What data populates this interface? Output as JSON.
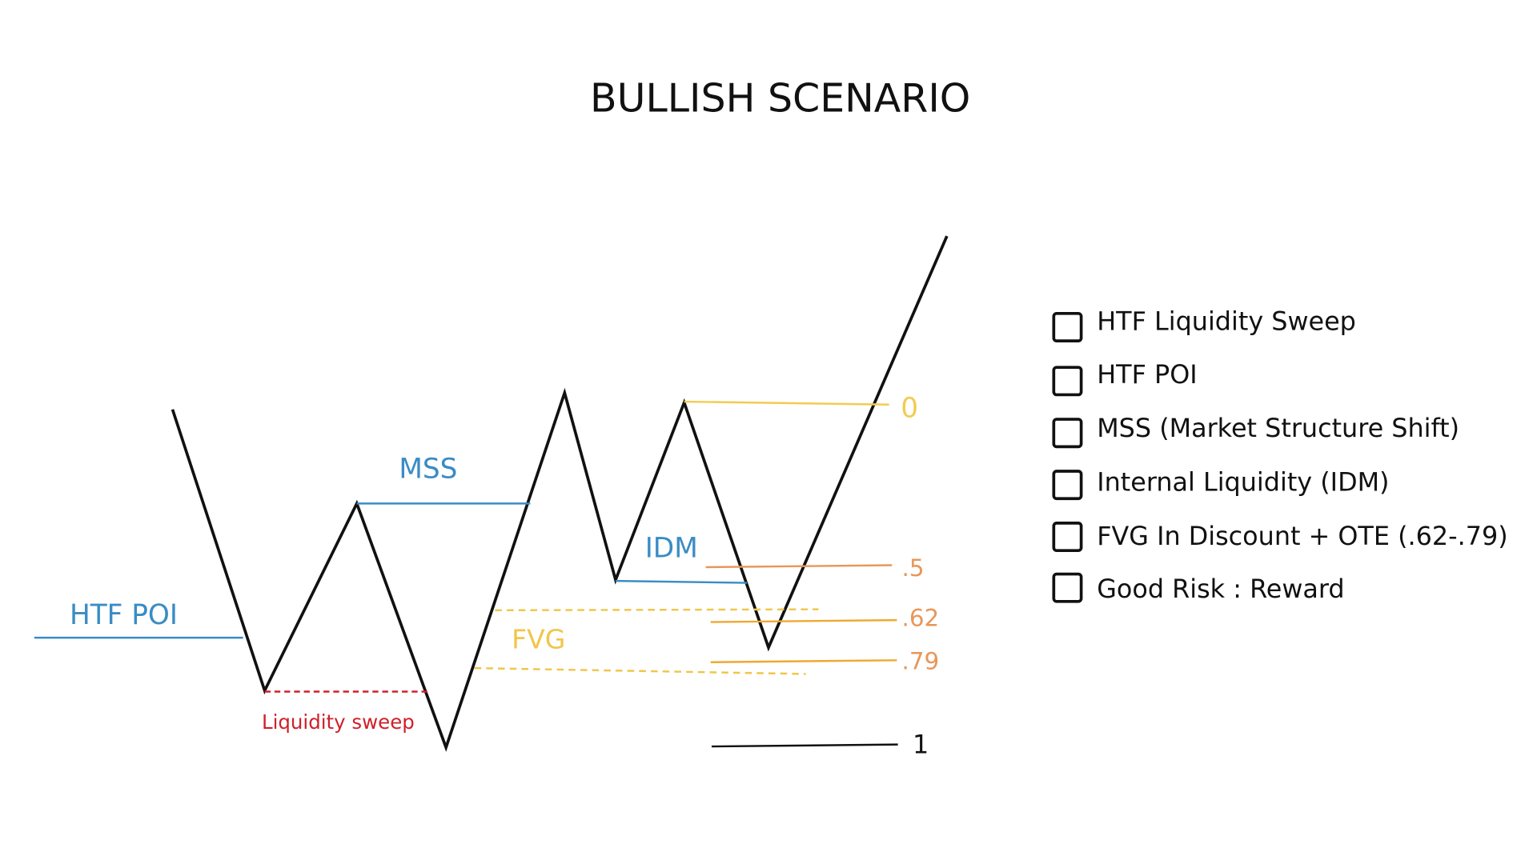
{
  "title": "BULLISH SCENARIO",
  "colors": {
    "price": "#111111",
    "blue": "#3a8cc4",
    "red": "#d0202a",
    "fvg": "#f0c64a",
    "fib_0": "#f2cc50",
    "fib_half": "#e8975a",
    "fib_ote": "#f0a830",
    "fib_1": "#111111"
  },
  "labels": {
    "htf_poi": "HTF POI",
    "mss": "MSS",
    "idm": "IDM",
    "fvg": "FVG",
    "liquidity_sweep": "Liquidity sweep"
  },
  "fib_levels": [
    {
      "label": "0"
    },
    {
      "label": ".5"
    },
    {
      "label": ".62"
    },
    {
      "label": ".79"
    },
    {
      "label": "1"
    }
  ],
  "checklist": [
    {
      "label": "HTF Liquidity Sweep",
      "checked": false
    },
    {
      "label": "HTF POI",
      "checked": false
    },
    {
      "label": "MSS (Market Structure Shift)",
      "checked": false
    },
    {
      "label": "Internal Liquidity (IDM)",
      "checked": false
    },
    {
      "label": "FVG In Discount + OTE (.62-.79)",
      "checked": false
    },
    {
      "label": "Good Risk : Reward",
      "checked": false
    }
  ]
}
